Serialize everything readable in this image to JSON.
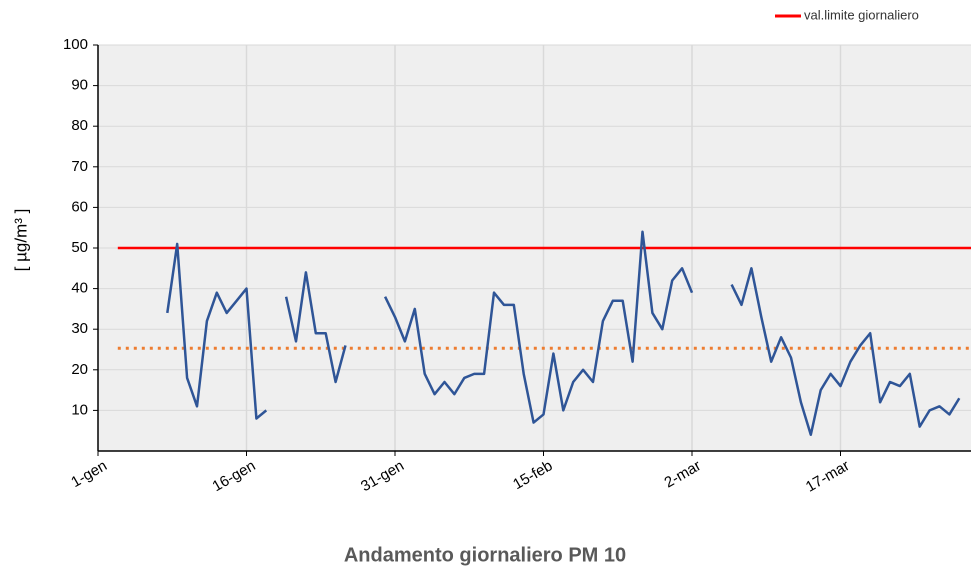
{
  "chart_data": {
    "type": "line",
    "title": "Andamento giornaliero PM 10",
    "y_label": "[ µg/m³ ]",
    "categories": [
      "1-gen",
      null,
      null,
      null,
      null,
      null,
      null,
      null,
      null,
      null,
      null,
      null,
      null,
      null,
      null,
      "16-gen",
      null,
      null,
      null,
      null,
      null,
      null,
      null,
      null,
      null,
      null,
      null,
      null,
      null,
      null,
      "31-gen",
      null,
      null,
      null,
      null,
      null,
      null,
      null,
      null,
      null,
      null,
      null,
      null,
      null,
      null,
      "15-feb",
      null,
      null,
      null,
      null,
      null,
      null,
      null,
      null,
      null,
      null,
      null,
      null,
      null,
      null,
      "2-mar",
      null,
      null,
      null,
      null,
      null,
      null,
      null,
      null,
      null,
      null,
      null,
      null,
      null,
      null,
      "17-mar",
      null,
      null,
      null,
      null,
      null,
      null,
      null,
      null,
      null,
      null,
      null,
      null,
      null
    ],
    "series": [
      {
        "color": "#2f5597",
        "values": [
          null,
          null,
          null,
          null,
          null,
          null,
          null,
          34,
          51,
          18,
          11,
          32,
          39,
          34,
          37,
          40,
          8,
          10,
          null,
          38,
          27,
          44,
          29,
          29,
          17,
          26,
          null,
          null,
          null,
          38,
          33,
          27,
          35,
          19,
          14,
          17,
          14,
          18,
          19,
          19,
          39,
          36,
          36,
          19,
          7,
          9,
          24,
          10,
          17,
          20,
          17,
          32,
          37,
          37,
          22,
          54,
          34,
          30,
          42,
          45,
          39,
          null,
          null,
          null,
          41,
          36,
          45,
          33,
          22,
          28,
          23,
          12,
          4,
          15,
          19,
          16,
          22,
          26,
          29,
          12,
          17,
          16,
          19,
          6,
          10,
          11,
          9,
          13,
          null
        ]
      }
    ],
    "reference_lines": [
      {
        "name": "val.limite giornaliero",
        "value": 50,
        "color": "#ff0000",
        "style": "solid"
      },
      {
        "value": 25.3,
        "color": "#ed7d31",
        "style": "dotted"
      }
    ],
    "ylim": [
      0,
      100
    ],
    "yticks": [
      10,
      20,
      30,
      40,
      50,
      60,
      70,
      80,
      90,
      100
    ],
    "grid": true,
    "legend": "top-right"
  }
}
